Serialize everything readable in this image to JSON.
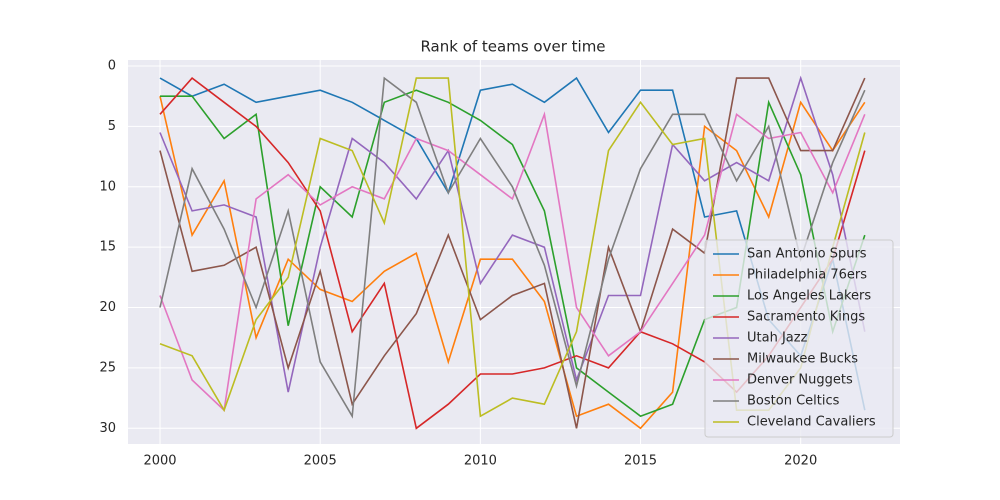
{
  "chart_data": {
    "type": "line",
    "title": "Rank of teams over time",
    "x": [
      2000,
      2001,
      2002,
      2003,
      2004,
      2005,
      2006,
      2007,
      2008,
      2009,
      2010,
      2011,
      2012,
      2013,
      2014,
      2015,
      2016,
      2017,
      2018,
      2019,
      2020,
      2021,
      2022
    ],
    "xlim": [
      1999,
      2023.1
    ],
    "xticks": [
      2000,
      2005,
      2010,
      2015,
      2020
    ],
    "ylim": [
      31.3,
      -0.5
    ],
    "yticks": [
      0,
      5,
      10,
      15,
      20,
      25,
      30
    ],
    "grid": true,
    "legend": "lower right",
    "series": [
      {
        "name": "San Antonio Spurs",
        "color": "#1f77b4",
        "values": [
          1,
          2.5,
          1.5,
          3,
          2.5,
          2,
          3,
          4.5,
          6,
          10.5,
          2,
          1.5,
          3,
          1,
          5.5,
          2,
          2,
          12.5,
          12,
          21,
          24,
          16,
          28.5
        ]
      },
      {
        "name": "Philadelphia 76ers",
        "color": "#ff7f0e",
        "values": [
          2.5,
          14,
          9.5,
          22.5,
          16,
          18.5,
          19.5,
          17,
          15.5,
          24.5,
          16,
          16,
          19.5,
          29,
          28,
          30,
          27,
          5,
          7,
          12.5,
          3,
          7,
          3
        ]
      },
      {
        "name": "Los Angeles Lakers",
        "color": "#2ca02c",
        "values": [
          2.5,
          2.5,
          6,
          4,
          21.5,
          10,
          12.5,
          3,
          2,
          3,
          4.5,
          6.5,
          12,
          25,
          27,
          29,
          28,
          21,
          20,
          3,
          9,
          22,
          14
        ]
      },
      {
        "name": "Sacramento Kings",
        "color": "#d62728",
        "values": [
          4,
          1,
          3,
          5,
          8,
          12,
          22,
          18,
          30,
          28,
          25.5,
          25.5,
          25,
          24,
          25,
          22,
          23,
          24.5,
          27,
          24,
          20,
          16,
          7
        ]
      },
      {
        "name": "Utah Jazz",
        "color": "#9467bd",
        "values": [
          5.5,
          12,
          11.5,
          12.5,
          27,
          15,
          6,
          8,
          11,
          7,
          18,
          14,
          15,
          26,
          19,
          19,
          6.5,
          9.5,
          8,
          9.5,
          1,
          9,
          22
        ]
      },
      {
        "name": "Milwaukee Bucks",
        "color": "#8c564b",
        "values": [
          7,
          17,
          16.5,
          15,
          25,
          17,
          28,
          24,
          20.5,
          14,
          21,
          19,
          18,
          30,
          15,
          22,
          13.5,
          15.5,
          1,
          1,
          7,
          7,
          1
        ]
      },
      {
        "name": "Denver Nuggets",
        "color": "#e377c2",
        "values": [
          19,
          26,
          28.5,
          11,
          9,
          11.5,
          10,
          11,
          6,
          7,
          9,
          11,
          4,
          20,
          24,
          22,
          18,
          14,
          4,
          6,
          5.5,
          10.5,
          4
        ]
      },
      {
        "name": "Boston Celtics",
        "color": "#7f7f7f",
        "values": [
          20,
          8.5,
          13.5,
          20,
          12,
          24.5,
          29,
          1,
          3,
          10.5,
          6,
          10,
          16.5,
          26.5,
          16,
          8.5,
          4,
          4,
          9.5,
          5,
          16,
          8,
          2
        ]
      },
      {
        "name": "Cleveland Cavaliers",
        "color": "#bcbd22",
        "values": [
          23,
          24,
          28.5,
          21,
          17.5,
          6,
          7,
          13,
          1,
          1,
          29,
          27.5,
          28,
          22,
          7,
          3,
          6.5,
          6,
          28.5,
          28.5,
          25,
          15,
          5.5
        ]
      }
    ]
  }
}
